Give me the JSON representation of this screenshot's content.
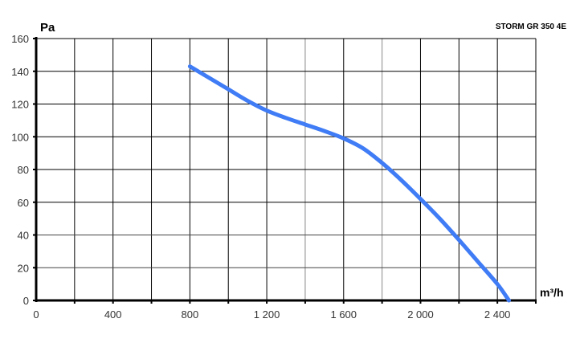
{
  "chart_data": {
    "type": "line",
    "title": "STORM GR 350 4E",
    "xlabel": "m³/h",
    "ylabel": "Pa",
    "xlim": [
      0,
      2600
    ],
    "ylim": [
      0,
      160
    ],
    "x_ticks": [
      0,
      400,
      800,
      1200,
      1600,
      2000,
      2400
    ],
    "x_tick_labels": [
      "0",
      "400",
      "800",
      "1 200",
      "1 600",
      "2 000",
      "2 400"
    ],
    "x_grid_step": 200,
    "y_ticks": [
      0,
      20,
      40,
      60,
      80,
      100,
      120,
      140,
      160
    ],
    "y_tick_labels": [
      "0",
      "20",
      "40",
      "60",
      "80",
      "100",
      "120",
      "140",
      "160"
    ],
    "grid": true,
    "series": [
      {
        "color": "#3f7cf5",
        "x": [
          800,
          900,
          1000,
          1100,
          1200,
          1300,
          1400,
          1500,
          1600,
          1700,
          1800,
          1900,
          2000,
          2100,
          2200,
          2300,
          2400,
          2460
        ],
        "y": [
          143,
          136,
          129,
          122,
          116,
          111.5,
          107.5,
          103.5,
          99,
          93,
          84,
          73.5,
          62,
          50,
          37,
          23.5,
          10,
          0
        ]
      }
    ]
  }
}
